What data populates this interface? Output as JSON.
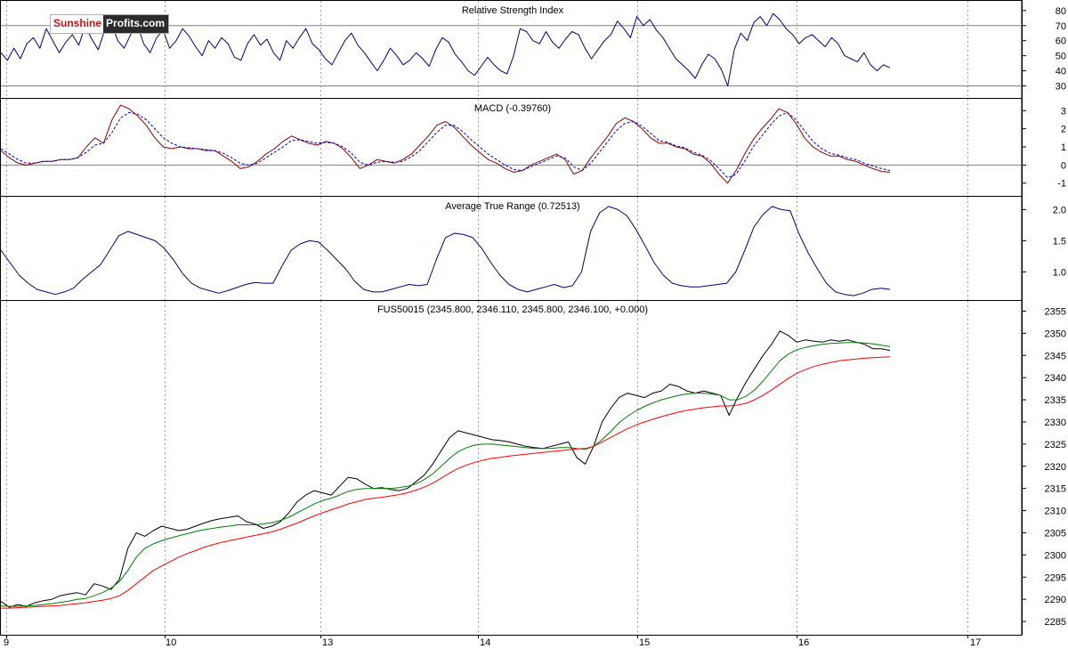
{
  "brand": {
    "part1": "Sunshine",
    "part2": "Profits.com"
  },
  "x_axis": {
    "labels": [
      "9",
      "10",
      "13",
      "14",
      "15",
      "16",
      "17"
    ]
  },
  "colors": {
    "rsi": "#000080",
    "macd": "#8b0000",
    "macd_signal": "#0000cd",
    "atr": "#000080",
    "price": "#000000",
    "ma_fast": "#008000",
    "ma_slow": "#ff0000",
    "guide": "#808080"
  },
  "chart_data": [
    {
      "type": "line",
      "title": "Relative Strength Index",
      "y_ticks": [
        30,
        40,
        50,
        60,
        70,
        80
      ],
      "ylim": [
        22,
        87
      ],
      "reference_lines": [
        70,
        30
      ],
      "series": [
        {
          "values": [
            52,
            47,
            55,
            48,
            58,
            62,
            55,
            68,
            60,
            52,
            59,
            64,
            57,
            70,
            61,
            54,
            67,
            72,
            60,
            55,
            64,
            71,
            58,
            52,
            62,
            67,
            55,
            60,
            68,
            63,
            56,
            50,
            60,
            55,
            62,
            58,
            49,
            47,
            58,
            64,
            57,
            61,
            52,
            47,
            60,
            55,
            62,
            68,
            58,
            54,
            48,
            44,
            52,
            60,
            65,
            57,
            52,
            46,
            40,
            47,
            55,
            50,
            44,
            47,
            52,
            48,
            43,
            54,
            62,
            59,
            51,
            46,
            40,
            37,
            43,
            49,
            44,
            40,
            38,
            50,
            68,
            66,
            60,
            58,
            66,
            59,
            55,
            61,
            66,
            64,
            55,
            48,
            54,
            60,
            64,
            73,
            68,
            62,
            76,
            70,
            74,
            67,
            62,
            55,
            48,
            44,
            40,
            35,
            44,
            51,
            48,
            41,
            30,
            54,
            65,
            60,
            72,
            76,
            70,
            78,
            74,
            68,
            64,
            58,
            62,
            64,
            60,
            56,
            62,
            58,
            50,
            48,
            46,
            52,
            44,
            40,
            44,
            42
          ]
        }
      ]
    },
    {
      "type": "line",
      "title": "MACD (-0.39760)",
      "y_ticks": [
        -1,
        0,
        1,
        2,
        3
      ],
      "ylim": [
        -1.7,
        3.7
      ],
      "reference_lines": [
        0
      ],
      "series": [
        {
          "values": [
            0.8,
            0.4,
            0.1,
            0.0,
            0.1,
            0.2,
            0.2,
            0.3,
            0.3,
            0.4,
            1.0,
            1.5,
            1.2,
            2.5,
            3.3,
            3.1,
            2.7,
            2.2,
            1.5,
            1.0,
            0.9,
            1.0,
            0.9,
            0.9,
            0.8,
            0.8,
            0.5,
            0.2,
            -0.2,
            -0.1,
            0.2,
            0.6,
            0.9,
            1.3,
            1.6,
            1.4,
            1.2,
            1.1,
            1.3,
            1.2,
            0.9,
            0.4,
            -0.2,
            0.0,
            0.3,
            0.2,
            0.1,
            0.3,
            0.6,
            1.1,
            1.6,
            2.2,
            2.4,
            2.1,
            1.6,
            1.1,
            0.7,
            0.3,
            0.1,
            -0.2,
            -0.4,
            -0.3,
            0.0,
            0.2,
            0.4,
            0.6,
            0.3,
            -0.5,
            -0.3,
            0.4,
            1.0,
            1.6,
            2.3,
            2.6,
            2.4,
            2.0,
            1.5,
            1.2,
            1.2,
            1.0,
            0.9,
            0.6,
            0.5,
            0.1,
            -0.5,
            -1.0,
            -0.3,
            0.6,
            1.4,
            2.0,
            2.5,
            3.1,
            2.9,
            2.3,
            1.5,
            1.0,
            0.7,
            0.5,
            0.5,
            0.3,
            0.2,
            0.0,
            -0.2,
            -0.35,
            -0.4
          ]
        },
        {
          "values": [
            0.9,
            0.6,
            0.3,
            0.1,
            0.1,
            0.2,
            0.2,
            0.3,
            0.3,
            0.4,
            0.7,
            1.1,
            1.2,
            1.8,
            2.6,
            2.9,
            2.8,
            2.5,
            2.0,
            1.5,
            1.2,
            1.0,
            0.95,
            0.9,
            0.85,
            0.8,
            0.65,
            0.4,
            0.1,
            0.0,
            0.1,
            0.4,
            0.7,
            1.0,
            1.35,
            1.4,
            1.3,
            1.2,
            1.25,
            1.2,
            1.0,
            0.65,
            0.15,
            0.0,
            0.15,
            0.2,
            0.15,
            0.2,
            0.45,
            0.8,
            1.3,
            1.8,
            2.2,
            2.2,
            1.85,
            1.4,
            1.0,
            0.6,
            0.3,
            0.0,
            -0.25,
            -0.3,
            -0.1,
            0.1,
            0.3,
            0.5,
            0.4,
            -0.1,
            -0.3,
            0.1,
            0.7,
            1.3,
            1.9,
            2.3,
            2.4,
            2.15,
            1.75,
            1.35,
            1.25,
            1.05,
            0.95,
            0.7,
            0.55,
            0.25,
            -0.2,
            -0.7,
            -0.5,
            0.2,
            1.0,
            1.6,
            2.2,
            2.7,
            2.9,
            2.5,
            1.9,
            1.3,
            0.9,
            0.65,
            0.55,
            0.4,
            0.3,
            0.1,
            -0.05,
            -0.2,
            -0.3
          ]
        }
      ]
    },
    {
      "type": "line",
      "title": "Average True Range (0.72513)",
      "y_ticks": [
        1.0,
        1.5,
        2.0
      ],
      "ylim": [
        0.55,
        2.22
      ],
      "series": [
        {
          "values": [
            1.35,
            1.15,
            0.95,
            0.82,
            0.72,
            0.68,
            0.64,
            0.68,
            0.74,
            0.88,
            1.0,
            1.12,
            1.35,
            1.58,
            1.65,
            1.6,
            1.55,
            1.5,
            1.38,
            1.2,
            0.98,
            0.82,
            0.74,
            0.7,
            0.66,
            0.7,
            0.75,
            0.8,
            0.83,
            0.82,
            0.82,
            1.1,
            1.35,
            1.45,
            1.5,
            1.48,
            1.35,
            1.2,
            1.05,
            0.85,
            0.72,
            0.68,
            0.68,
            0.72,
            0.76,
            0.8,
            0.78,
            0.8,
            1.2,
            1.55,
            1.62,
            1.6,
            1.55,
            1.38,
            1.15,
            0.95,
            0.8,
            0.72,
            0.68,
            0.72,
            0.76,
            0.8,
            0.75,
            0.78,
            1.0,
            1.65,
            1.95,
            2.05,
            2.0,
            1.9,
            1.68,
            1.42,
            1.15,
            0.95,
            0.82,
            0.78,
            0.76,
            0.76,
            0.78,
            0.8,
            0.82,
            1.0,
            1.35,
            1.72,
            1.92,
            2.05,
            2.0,
            1.98,
            1.6,
            1.3,
            1.05,
            0.82,
            0.68,
            0.64,
            0.62,
            0.66,
            0.72,
            0.74,
            0.72
          ]
        }
      ]
    },
    {
      "type": "line",
      "title": "FUS50015 (2345.800, 2346.110, 2345.800, 2346.100, +0.000)",
      "y_ticks": [
        2285,
        2290,
        2295,
        2300,
        2305,
        2310,
        2315,
        2320,
        2325,
        2330,
        2335,
        2340,
        2345,
        2350,
        2355
      ],
      "ylim": [
        2282,
        2357.5
      ],
      "series": [
        {
          "values": [
            2289.5,
            2288.2,
            2288.8,
            2288.4,
            2289.2,
            2289.7,
            2290.0,
            2290.8,
            2291.2,
            2291.5,
            2291.0,
            2293.5,
            2293.0,
            2292.2,
            2294.5,
            2301.5,
            2305.0,
            2304.2,
            2305.5,
            2306.5,
            2306.0,
            2305.5,
            2305.8,
            2306.5,
            2307.2,
            2307.8,
            2308.2,
            2308.5,
            2308.8,
            2307.5,
            2307.0,
            2306.0,
            2306.5,
            2307.5,
            2309.5,
            2312.0,
            2313.5,
            2314.5,
            2314.0,
            2313.5,
            2315.5,
            2317.5,
            2317.2,
            2316.0,
            2315.0,
            2315.2,
            2314.8,
            2314.5,
            2315.0,
            2316.5,
            2318.0,
            2320.5,
            2323.5,
            2326.5,
            2328.0,
            2327.5,
            2327.0,
            2326.5,
            2326.0,
            2325.8,
            2325.5,
            2325.0,
            2324.5,
            2324.2,
            2324.0,
            2324.5,
            2325.0,
            2325.5,
            2322.0,
            2320.5,
            2324.5,
            2330.0,
            2333.0,
            2335.5,
            2336.5,
            2336.0,
            2335.5,
            2336.5,
            2337.0,
            2338.5,
            2338.0,
            2337.0,
            2336.5,
            2337.0,
            2336.5,
            2336.0,
            2331.5,
            2335.5,
            2339.0,
            2342.0,
            2345.0,
            2347.5,
            2350.5,
            2349.5,
            2348.0,
            2348.5,
            2348.2,
            2348.0,
            2348.5,
            2348.2,
            2348.5,
            2348.0,
            2347.5,
            2346.5,
            2346.5,
            2346.1
          ]
        },
        {
          "values": [
            2288.5,
            2288.4,
            2288.4,
            2288.5,
            2288.6,
            2288.8,
            2289.0,
            2289.3,
            2289.6,
            2290.0,
            2290.2,
            2290.8,
            2291.5,
            2292.5,
            2294.0,
            2296.5,
            2299.5,
            2301.5,
            2302.5,
            2303.2,
            2303.8,
            2304.3,
            2304.8,
            2305.3,
            2305.7,
            2306.0,
            2306.3,
            2306.5,
            2306.8,
            2306.8,
            2306.8,
            2307.0,
            2307.3,
            2307.8,
            2308.5,
            2309.5,
            2310.5,
            2311.5,
            2312.3,
            2312.8,
            2313.5,
            2314.3,
            2314.8,
            2315.0,
            2315.0,
            2315.0,
            2315.0,
            2315.2,
            2315.5,
            2316.0,
            2317.0,
            2318.3,
            2320.0,
            2321.8,
            2323.3,
            2324.2,
            2324.8,
            2325.0,
            2325.0,
            2324.8,
            2324.6,
            2324.4,
            2324.2,
            2324.0,
            2324.0,
            2324.0,
            2324.2,
            2324.2,
            2324.0,
            2323.8,
            2324.5,
            2326.0,
            2327.8,
            2329.8,
            2331.3,
            2332.5,
            2333.5,
            2334.3,
            2335.0,
            2335.5,
            2336.0,
            2336.3,
            2336.5,
            2336.5,
            2336.3,
            2336.0,
            2335.0,
            2335.0,
            2335.8,
            2337.2,
            2339.2,
            2341.5,
            2343.8,
            2345.3,
            2346.3,
            2346.8,
            2347.2,
            2347.5,
            2347.7,
            2347.8,
            2347.9,
            2347.9,
            2347.8,
            2347.6,
            2347.3,
            2347.0
          ]
        },
        {
          "values": [
            2288.0,
            2288.0,
            2288.1,
            2288.2,
            2288.3,
            2288.4,
            2288.5,
            2288.6,
            2288.8,
            2289.0,
            2289.2,
            2289.5,
            2289.8,
            2290.2,
            2290.8,
            2292.0,
            2293.5,
            2295.0,
            2296.5,
            2297.5,
            2298.5,
            2299.5,
            2300.3,
            2301.0,
            2301.7,
            2302.3,
            2302.8,
            2303.2,
            2303.6,
            2304.0,
            2304.4,
            2304.8,
            2305.2,
            2305.8,
            2306.5,
            2307.2,
            2308.0,
            2308.8,
            2309.5,
            2310.2,
            2310.8,
            2311.5,
            2312.0,
            2312.5,
            2312.8,
            2313.0,
            2313.3,
            2313.6,
            2314.0,
            2314.6,
            2315.3,
            2316.2,
            2317.3,
            2318.5,
            2319.5,
            2320.3,
            2320.9,
            2321.4,
            2321.8,
            2322.0,
            2322.3,
            2322.5,
            2322.7,
            2322.9,
            2323.1,
            2323.3,
            2323.5,
            2323.7,
            2323.9,
            2324.0,
            2324.5,
            2325.5,
            2326.5,
            2327.5,
            2328.5,
            2329.3,
            2330.0,
            2330.6,
            2331.2,
            2331.7,
            2332.2,
            2332.6,
            2332.9,
            2333.2,
            2333.4,
            2333.6,
            2333.6,
            2333.8,
            2334.2,
            2335.0,
            2336.0,
            2337.2,
            2338.5,
            2339.8,
            2341.0,
            2341.8,
            2342.5,
            2343.0,
            2343.4,
            2343.8,
            2344.0,
            2344.2,
            2344.4,
            2344.5,
            2344.6,
            2344.7
          ]
        }
      ]
    }
  ]
}
